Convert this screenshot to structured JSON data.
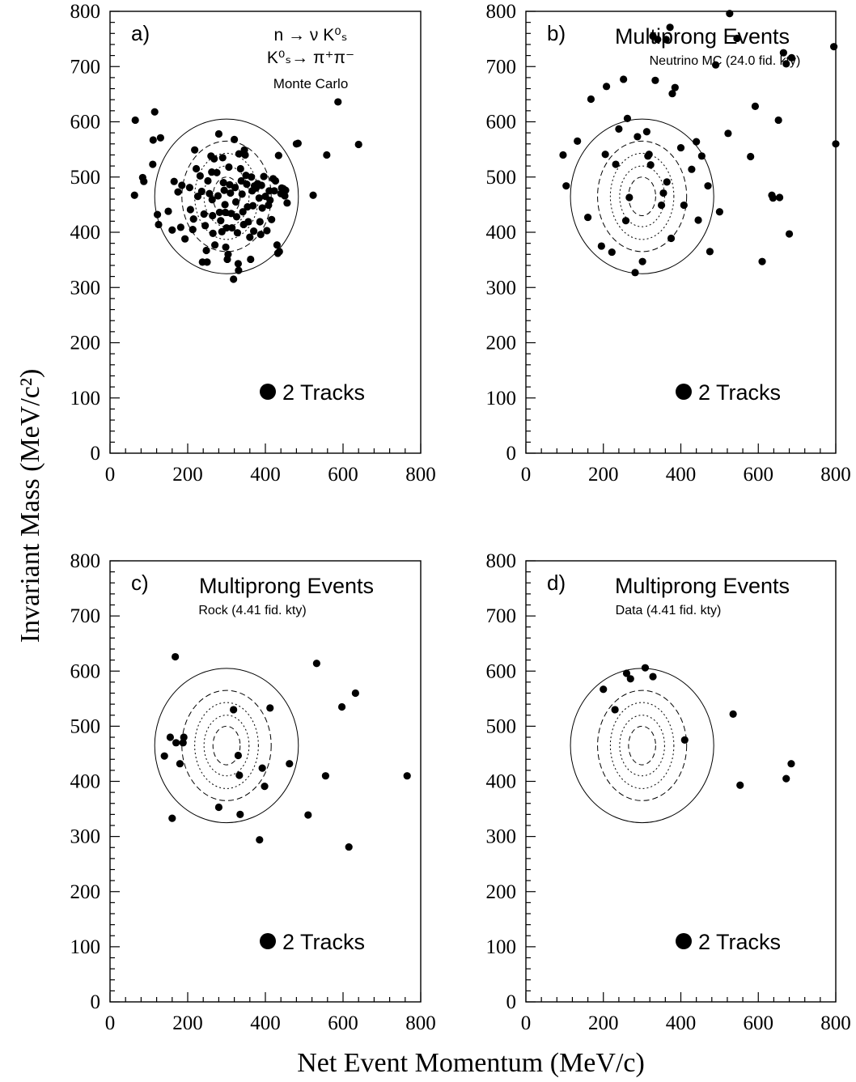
{
  "figure": {
    "ylabel": "Invariant Mass (MeV/c²)",
    "xlabel": "Net Event Momentum (MeV/c)"
  },
  "chart_data": [
    {
      "type": "scatter",
      "panel_label": "a)",
      "title": "",
      "annotation_lines": [
        "n → ν K⁰ₛ",
        "K⁰ₛ→ π⁺π⁻",
        "Monte Carlo"
      ],
      "legend": "2 Tracks",
      "xlim": [
        0,
        800
      ],
      "ylim": [
        0,
        800
      ],
      "xticks": [
        0,
        200,
        400,
        600,
        800
      ],
      "yticks": [
        0,
        100,
        200,
        300,
        400,
        500,
        600,
        700,
        800
      ],
      "points": [
        [
          65,
          603
        ],
        [
          115,
          618
        ],
        [
          111,
          567
        ],
        [
          130,
          571
        ],
        [
          63,
          467
        ],
        [
          84,
          499
        ],
        [
          87,
          492
        ],
        [
          110,
          523
        ],
        [
          122,
          432
        ],
        [
          125,
          414
        ],
        [
          150,
          438
        ],
        [
          160,
          404
        ],
        [
          165,
          492
        ],
        [
          175,
          473
        ],
        [
          182,
          409
        ],
        [
          185,
          485
        ],
        [
          193,
          388
        ],
        [
          205,
          481
        ],
        [
          207,
          441
        ],
        [
          213,
          405
        ],
        [
          215,
          424
        ],
        [
          218,
          549
        ],
        [
          222,
          515
        ],
        [
          226,
          465
        ],
        [
          232,
          502
        ],
        [
          236,
          474
        ],
        [
          242,
          433
        ],
        [
          245,
          412
        ],
        [
          248,
          367
        ],
        [
          250,
          346
        ],
        [
          238,
          346
        ],
        [
          252,
          493
        ],
        [
          256,
          470
        ],
        [
          260,
          538
        ],
        [
          262,
          509
        ],
        [
          263,
          459
        ],
        [
          264,
          430
        ],
        [
          265,
          398
        ],
        [
          268,
          533
        ],
        [
          270,
          377
        ],
        [
          275,
          508
        ],
        [
          278,
          466
        ],
        [
          280,
          578
        ],
        [
          282,
          436
        ],
        [
          285,
          421
        ],
        [
          288,
          401
        ],
        [
          290,
          535
        ],
        [
          292,
          490
        ],
        [
          294,
          476
        ],
        [
          296,
          450
        ],
        [
          297,
          436
        ],
        [
          298,
          373
        ],
        [
          300,
          408
        ],
        [
          302,
          351
        ],
        [
          304,
          360
        ],
        [
          306,
          518
        ],
        [
          308,
          486
        ],
        [
          310,
          471
        ],
        [
          312,
          434
        ],
        [
          314,
          408
        ],
        [
          318,
          315
        ],
        [
          320,
          568
        ],
        [
          322,
          481
        ],
        [
          324,
          455
        ],
        [
          326,
          428
        ],
        [
          328,
          399
        ],
        [
          330,
          343
        ],
        [
          331,
          331
        ],
        [
          332,
          542
        ],
        [
          336,
          515
        ],
        [
          338,
          493
        ],
        [
          340,
          469
        ],
        [
          342,
          437
        ],
        [
          344,
          414
        ],
        [
          346,
          549
        ],
        [
          348,
          540
        ],
        [
          350,
          503
        ],
        [
          352,
          487
        ],
        [
          354,
          446
        ],
        [
          356,
          419
        ],
        [
          360,
          391
        ],
        [
          362,
          351
        ],
        [
          364,
          500
        ],
        [
          366,
          475
        ],
        [
          368,
          448
        ],
        [
          370,
          402
        ],
        [
          372,
          484
        ],
        [
          376,
          480
        ],
        [
          380,
          488
        ],
        [
          384,
          462
        ],
        [
          386,
          419
        ],
        [
          388,
          396
        ],
        [
          390,
          485
        ],
        [
          392,
          444
        ],
        [
          396,
          501
        ],
        [
          400,
          465
        ],
        [
          404,
          403
        ],
        [
          408,
          449
        ],
        [
          410,
          475
        ],
        [
          412,
          458
        ],
        [
          416,
          423
        ],
        [
          420,
          497
        ],
        [
          423,
          475
        ],
        [
          426,
          493
        ],
        [
          430,
          377
        ],
        [
          432,
          362
        ],
        [
          434,
          539
        ],
        [
          436,
          365
        ],
        [
          440,
          470
        ],
        [
          442,
          480
        ],
        [
          446,
          479
        ],
        [
          450,
          466
        ],
        [
          452,
          476
        ],
        [
          456,
          453
        ],
        [
          480,
          560
        ],
        [
          484,
          561
        ],
        [
          523,
          467
        ],
        [
          558,
          540
        ],
        [
          587,
          636
        ],
        [
          640,
          559
        ]
      ],
      "ellipses_sigma": [
        1,
        2,
        3,
        4,
        5
      ]
    },
    {
      "type": "scatter",
      "panel_label": "b)",
      "title": "Multiprong Events",
      "annotation_lines": [
        "Neutrino MC (24.0 fid. kty)"
      ],
      "legend": "2 Tracks",
      "xlim": [
        0,
        800
      ],
      "ylim": [
        0,
        800
      ],
      "xticks": [
        0,
        200,
        400,
        600,
        800
      ],
      "yticks": [
        0,
        100,
        200,
        300,
        400,
        500,
        600,
        700,
        800
      ],
      "points": [
        [
          96,
          540
        ],
        [
          104,
          484
        ],
        [
          133,
          565
        ],
        [
          160,
          427
        ],
        [
          168,
          641
        ],
        [
          195,
          375
        ],
        [
          205,
          541
        ],
        [
          208,
          664
        ],
        [
          222,
          364
        ],
        [
          232,
          523
        ],
        [
          240,
          587
        ],
        [
          252,
          677
        ],
        [
          258,
          421
        ],
        [
          262,
          606
        ],
        [
          267,
          463
        ],
        [
          282,
          327
        ],
        [
          288,
          573
        ],
        [
          301,
          347
        ],
        [
          312,
          582
        ],
        [
          315,
          538
        ],
        [
          318,
          541
        ],
        [
          322,
          522
        ],
        [
          328,
          755
        ],
        [
          334,
          675
        ],
        [
          340,
          749
        ],
        [
          350,
          449
        ],
        [
          355,
          471
        ],
        [
          362,
          749
        ],
        [
          364,
          491
        ],
        [
          372,
          771
        ],
        [
          375,
          389
        ],
        [
          378,
          651
        ],
        [
          385,
          662
        ],
        [
          400,
          553
        ],
        [
          408,
          449
        ],
        [
          428,
          514
        ],
        [
          440,
          564
        ],
        [
          445,
          422
        ],
        [
          454,
          538
        ],
        [
          470,
          484
        ],
        [
          475,
          365
        ],
        [
          490,
          703
        ],
        [
          500,
          437
        ],
        [
          522,
          579
        ],
        [
          526,
          796
        ],
        [
          545,
          751
        ],
        [
          580,
          537
        ],
        [
          592,
          628
        ],
        [
          610,
          347
        ],
        [
          635,
          467
        ],
        [
          638,
          462
        ],
        [
          652,
          603
        ],
        [
          655,
          463
        ],
        [
          665,
          725
        ],
        [
          672,
          705
        ],
        [
          680,
          397
        ],
        [
          686,
          716
        ],
        [
          795,
          736
        ],
        [
          800,
          560
        ]
      ],
      "ellipses_sigma": [
        1,
        2,
        3,
        4,
        5
      ]
    },
    {
      "type": "scatter",
      "panel_label": "c)",
      "title": "Multiprong Events",
      "annotation_lines": [
        "Rock (4.41 fid. kty)"
      ],
      "legend": "2 Tracks",
      "xlim": [
        0,
        800
      ],
      "ylim": [
        0,
        800
      ],
      "xticks": [
        0,
        200,
        400,
        600,
        800
      ],
      "yticks": [
        0,
        100,
        200,
        300,
        400,
        500,
        600,
        700,
        800
      ],
      "points": [
        [
          140,
          446
        ],
        [
          155,
          480
        ],
        [
          160,
          333
        ],
        [
          168,
          626
        ],
        [
          170,
          470
        ],
        [
          180,
          432
        ],
        [
          188,
          470
        ],
        [
          190,
          480
        ],
        [
          280,
          353
        ],
        [
          318,
          530
        ],
        [
          330,
          447
        ],
        [
          333,
          411
        ],
        [
          335,
          340
        ],
        [
          385,
          294
        ],
        [
          392,
          424
        ],
        [
          398,
          391
        ],
        [
          412,
          533
        ],
        [
          462,
          432
        ],
        [
          510,
          339
        ],
        [
          532,
          614
        ],
        [
          555,
          410
        ],
        [
          597,
          535
        ],
        [
          615,
          281
        ],
        [
          632,
          560
        ],
        [
          765,
          410
        ]
      ],
      "ellipses_sigma": [
        1,
        2,
        3,
        4,
        5
      ]
    },
    {
      "type": "scatter",
      "panel_label": "d)",
      "title": "Multiprong Events",
      "annotation_lines": [
        "Data (4.41 fid. kty)"
      ],
      "legend": "2 Tracks",
      "xlim": [
        0,
        800
      ],
      "ylim": [
        0,
        800
      ],
      "xticks": [
        0,
        200,
        400,
        600,
        800
      ],
      "yticks": [
        0,
        100,
        200,
        300,
        400,
        500,
        600,
        700,
        800
      ],
      "points": [
        [
          200,
          567
        ],
        [
          230,
          530
        ],
        [
          260,
          596
        ],
        [
          270,
          586
        ],
        [
          308,
          606
        ],
        [
          328,
          590
        ],
        [
          410,
          475
        ],
        [
          535,
          522
        ],
        [
          553,
          393
        ],
        [
          672,
          405
        ],
        [
          685,
          432
        ]
      ],
      "ellipses_sigma": [
        1,
        2,
        3,
        4,
        5
      ]
    }
  ]
}
